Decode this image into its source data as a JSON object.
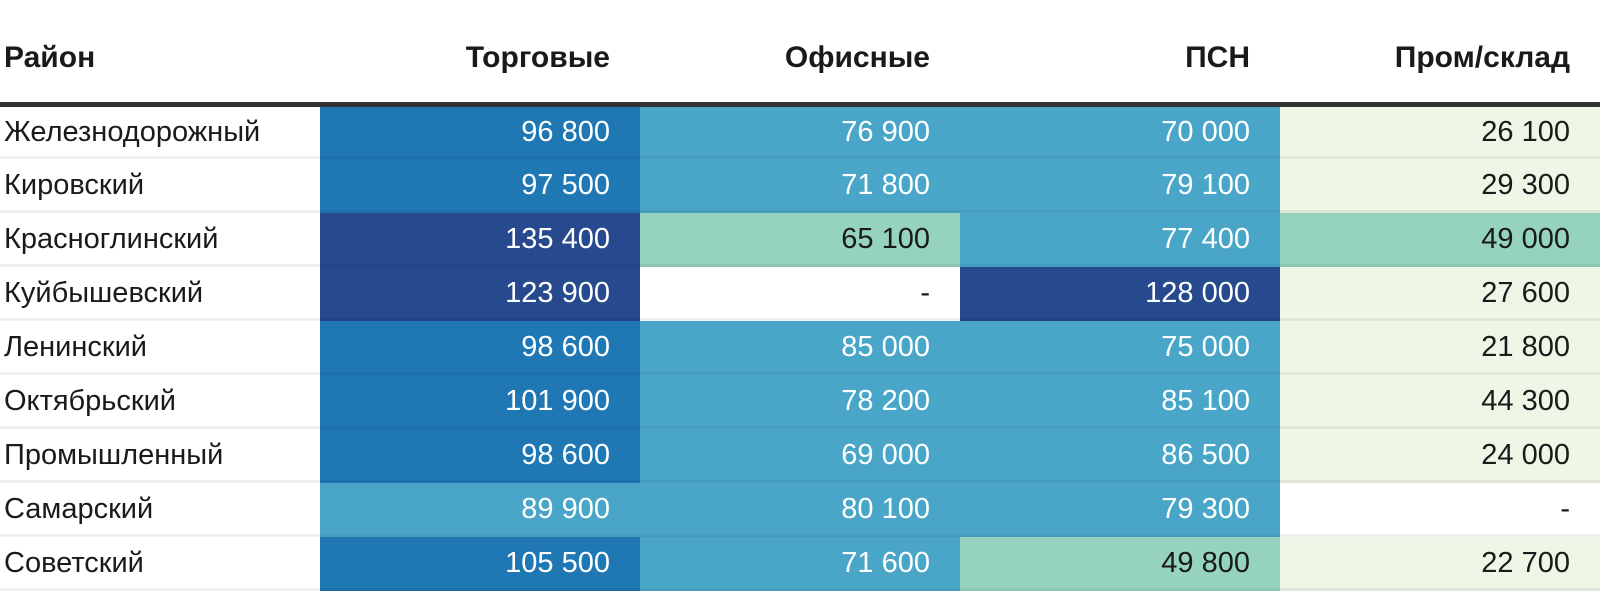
{
  "palette": {
    "navy": {
      "bg": "#27498E",
      "text": "#FFFFFF"
    },
    "blue": {
      "bg": "#1F78B4",
      "text": "#FFFFFF"
    },
    "teal": {
      "bg": "#4AA6C9",
      "text": "#FFFFFF"
    },
    "green": {
      "bg": "#95D3BE",
      "text": "#1A1A1A"
    },
    "lightgreen": {
      "bg": "#EEF6E6",
      "text": "#1A1A1A"
    },
    "none": {
      "bg": "#FFFFFF",
      "text": "#1A1A1A"
    }
  },
  "header": {
    "district": "Район",
    "retail": "Торговые",
    "office": "Офисные",
    "psn": "ПСН",
    "industrial": "Пром/склад"
  },
  "rows": [
    {
      "label": "Железнодорожный",
      "cells": [
        {
          "value": "96 800",
          "bucket": "blue"
        },
        {
          "value": "76 900",
          "bucket": "teal"
        },
        {
          "value": "70 000",
          "bucket": "teal"
        },
        {
          "value": "26 100",
          "bucket": "lightgreen"
        }
      ]
    },
    {
      "label": "Кировский",
      "cells": [
        {
          "value": "97 500",
          "bucket": "blue"
        },
        {
          "value": "71 800",
          "bucket": "teal"
        },
        {
          "value": "79 100",
          "bucket": "teal"
        },
        {
          "value": "29 300",
          "bucket": "lightgreen"
        }
      ]
    },
    {
      "label": "Красноглинский",
      "cells": [
        {
          "value": "135 400",
          "bucket": "navy"
        },
        {
          "value": "65 100",
          "bucket": "green"
        },
        {
          "value": "77 400",
          "bucket": "teal"
        },
        {
          "value": "49 000",
          "bucket": "green"
        }
      ]
    },
    {
      "label": "Куйбышевский",
      "cells": [
        {
          "value": "123 900",
          "bucket": "navy"
        },
        {
          "value": "-",
          "bucket": "none"
        },
        {
          "value": "128 000",
          "bucket": "navy"
        },
        {
          "value": "27 600",
          "bucket": "lightgreen"
        }
      ]
    },
    {
      "label": "Ленинский",
      "cells": [
        {
          "value": "98 600",
          "bucket": "blue"
        },
        {
          "value": "85 000",
          "bucket": "teal"
        },
        {
          "value": "75 000",
          "bucket": "teal"
        },
        {
          "value": "21 800",
          "bucket": "lightgreen"
        }
      ]
    },
    {
      "label": "Октябрьский",
      "cells": [
        {
          "value": "101 900",
          "bucket": "blue"
        },
        {
          "value": "78 200",
          "bucket": "teal"
        },
        {
          "value": "85 100",
          "bucket": "teal"
        },
        {
          "value": "44 300",
          "bucket": "lightgreen"
        }
      ]
    },
    {
      "label": "Промышленный",
      "cells": [
        {
          "value": "98 600",
          "bucket": "blue"
        },
        {
          "value": "69 000",
          "bucket": "teal"
        },
        {
          "value": "86 500",
          "bucket": "teal"
        },
        {
          "value": "24 000",
          "bucket": "lightgreen"
        }
      ]
    },
    {
      "label": "Самарский",
      "cells": [
        {
          "value": "89 900",
          "bucket": "teal"
        },
        {
          "value": "80 100",
          "bucket": "teal"
        },
        {
          "value": "79 300",
          "bucket": "teal"
        },
        {
          "value": "-",
          "bucket": "none"
        }
      ]
    },
    {
      "label": "Советский",
      "cells": [
        {
          "value": "105 500",
          "bucket": "blue"
        },
        {
          "value": "71 600",
          "bucket": "teal"
        },
        {
          "value": "49 800",
          "bucket": "green"
        },
        {
          "value": "22 700",
          "bucket": "lightgreen"
        }
      ]
    }
  ],
  "chart_data": {
    "type": "heatmap",
    "columns": [
      "Торговые",
      "Офисные",
      "ПСН",
      "Пром/склад"
    ],
    "rows": [
      "Железнодорожный",
      "Кировский",
      "Красноглинский",
      "Куйбышевский",
      "Ленинский",
      "Октябрьский",
      "Промышленный",
      "Самарский",
      "Советский"
    ],
    "values": [
      [
        96800,
        76900,
        70000,
        26100
      ],
      [
        97500,
        71800,
        79100,
        29300
      ],
      [
        135400,
        65100,
        77400,
        49000
      ],
      [
        123900,
        null,
        128000,
        27600
      ],
      [
        98600,
        85000,
        75000,
        21800
      ],
      [
        101900,
        78200,
        85100,
        44300
      ],
      [
        98600,
        69000,
        86500,
        24000
      ],
      [
        89900,
        80100,
        79300,
        null
      ],
      [
        105500,
        71600,
        49800,
        22700
      ]
    ],
    "missing_marker": "-",
    "row_header_label": "Район",
    "color_scale": [
      {
        "range": "120000+",
        "color": "#27498E"
      },
      {
        "range": "96000-106000",
        "color": "#1F78B4"
      },
      {
        "range": "69000-90000",
        "color": "#4AA6C9"
      },
      {
        "range": "49000-65100",
        "color": "#95D3BE"
      },
      {
        "range": "<=44300",
        "color": "#EEF6E6"
      },
      {
        "range": "missing",
        "color": "#FFFFFF"
      }
    ],
    "legend": "none",
    "grid": "off"
  }
}
